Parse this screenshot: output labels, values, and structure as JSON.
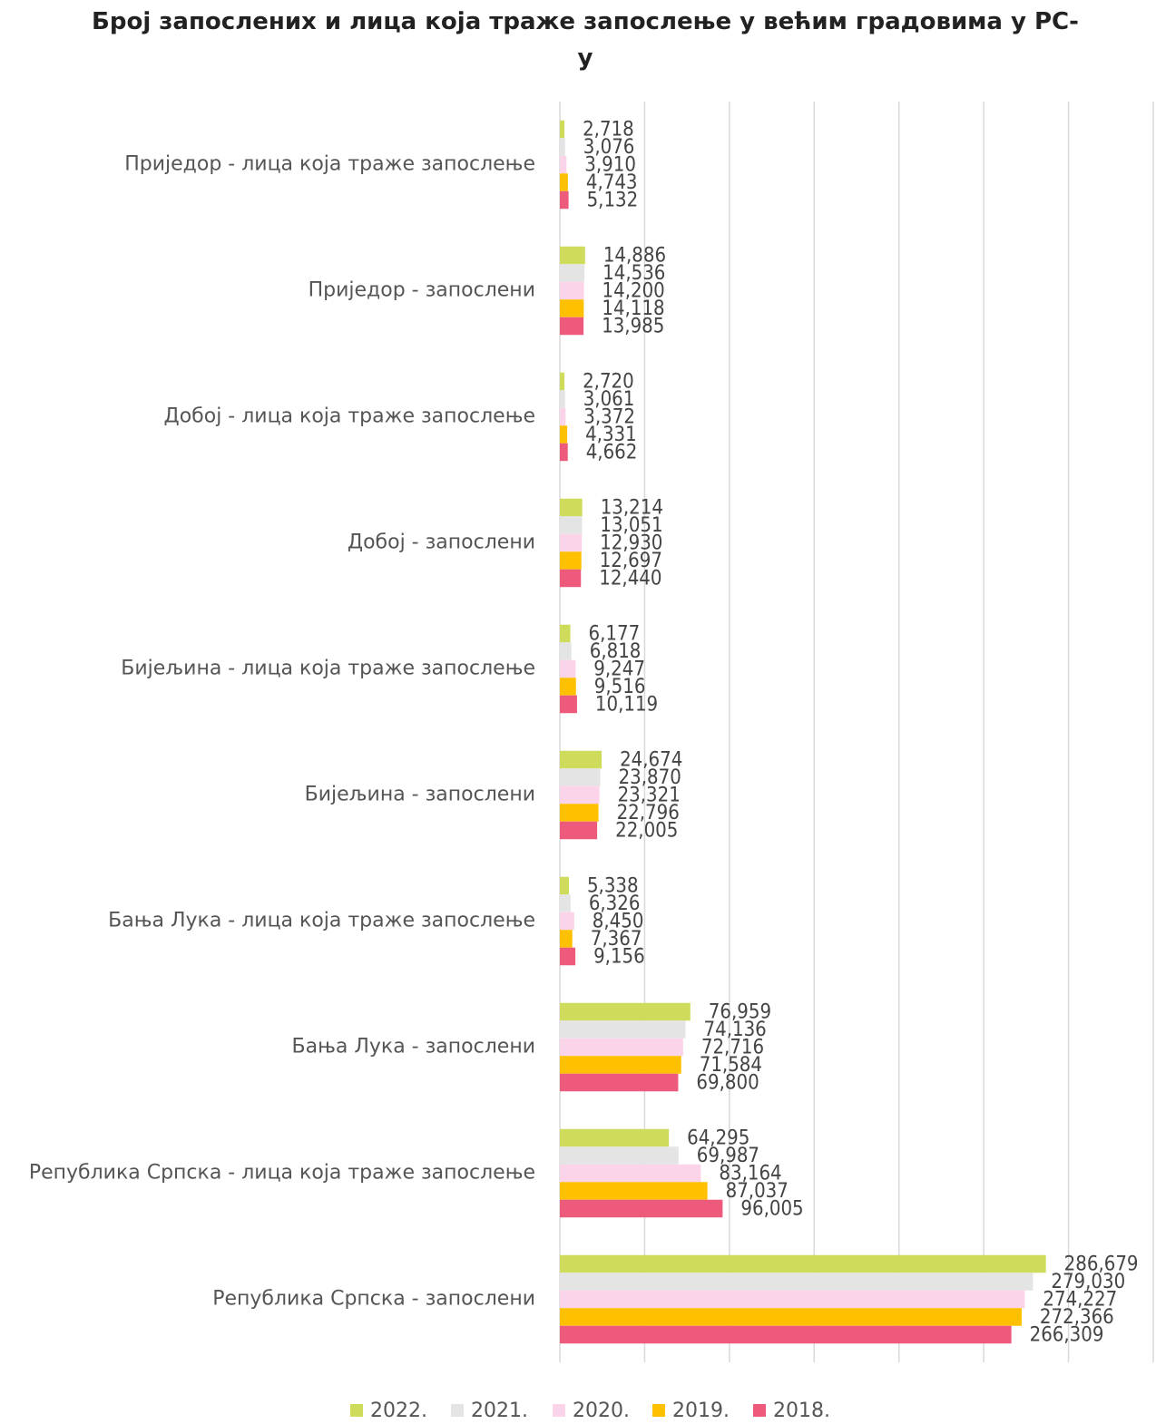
{
  "chart_data": {
    "type": "barh",
    "title": "Број запослених и лица која траже запослење у већим градовима у РС-у",
    "categories": [
      "Приједор - лица која траже запослење",
      "Приједор - запослени",
      "Добој - лица која траже запослење",
      "Добој - запослени",
      "Бијељина - лица која траже запослење",
      "Бијељина - запослени",
      "Бања Лука - лица која траже запослење",
      "Бања Лука - запослени",
      "Република Српска - лица која траже запослење",
      "Република Српска - запослени"
    ],
    "series": [
      {
        "name": "2022.",
        "color": "#cfdc5b",
        "values": [
          2718,
          14886,
          2720,
          13214,
          6177,
          24674,
          5338,
          76959,
          64295,
          286679
        ],
        "value_labels": [
          "2,718",
          "14,886",
          "2,720",
          "13,214",
          "6,177",
          "24,674",
          "5,338",
          "76,959",
          "64,295",
          "286,679"
        ]
      },
      {
        "name": "2021.",
        "color": "#e4e4e4",
        "values": [
          3076,
          14536,
          3061,
          13051,
          6818,
          23870,
          6326,
          74136,
          69987,
          279030
        ],
        "value_labels": [
          "3,076",
          "14,536",
          "3,061",
          "13,051",
          "6,818",
          "23,870",
          "6,326",
          "74,136",
          "69,987",
          "279,030"
        ]
      },
      {
        "name": "2020.",
        "color": "#fcd4ea",
        "values": [
          3910,
          14200,
          3372,
          12930,
          9247,
          23321,
          8450,
          72716,
          83164,
          274227
        ],
        "value_labels": [
          "3,910",
          "14,200",
          "3,372",
          "12,930",
          "9,247",
          "23,321",
          "8,450",
          "72,716",
          "83,164",
          "274,227"
        ]
      },
      {
        "name": "2019.",
        "color": "#ffc000",
        "values": [
          4743,
          14118,
          4331,
          12697,
          9516,
          22796,
          7367,
          71584,
          87037,
          272366
        ],
        "value_labels": [
          "4,743",
          "14,118",
          "4,331",
          "12,697",
          "9,516",
          "22,796",
          "7,367",
          "71,584",
          "87,037",
          "272,366"
        ]
      },
      {
        "name": "2018.",
        "color": "#ee5a7c",
        "values": [
          5132,
          13985,
          4662,
          12440,
          10119,
          22005,
          9156,
          69800,
          96005,
          266309
        ],
        "value_labels": [
          "5,132",
          "13,985",
          "4,662",
          "12,440",
          "10,119",
          "22,005",
          "9,156",
          "69,800",
          "96,005",
          "266,309"
        ]
      }
    ],
    "xlim": [
      0,
      350000
    ],
    "xticks": [
      0,
      50000,
      100000,
      150000,
      200000,
      250000,
      300000,
      350000
    ],
    "grid": true
  }
}
